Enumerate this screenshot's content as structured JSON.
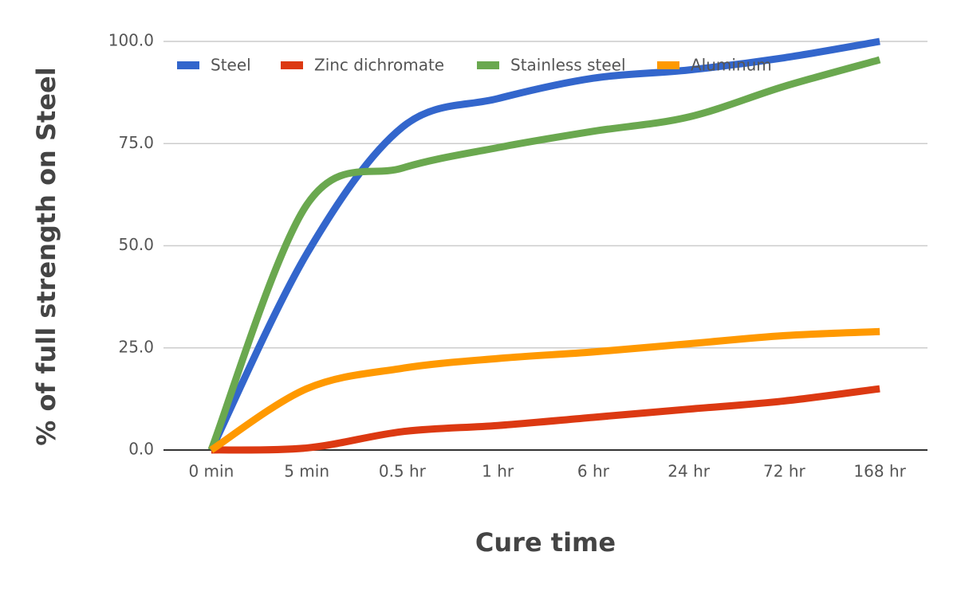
{
  "chart_data": {
    "type": "line",
    "x_label": "Cure time",
    "y_label": "% of full strength on Steel",
    "categories": [
      "0 min",
      "5 min",
      "0.5 hr",
      "1 hr",
      "6 hr",
      "24 hr",
      "72 hr",
      "168 hr"
    ],
    "series": [
      {
        "name": "Steel",
        "color": "#3366cc",
        "values": [
          0,
          48,
          79,
          86,
          91,
          93,
          96,
          100
        ]
      },
      {
        "name": "Zinc dichromate",
        "color": "#dc3912",
        "values": [
          0,
          0.5,
          4.5,
          6,
          8,
          10,
          12,
          15
        ]
      },
      {
        "name": "Stainless steel",
        "color": "#6aa84f",
        "values": [
          0,
          60,
          69,
          74,
          78,
          81.5,
          89,
          95.5
        ]
      },
      {
        "name": "Aluminum",
        "color": "#ff9900",
        "values": [
          0,
          15,
          20,
          22.4,
          24,
          26,
          28,
          29
        ]
      }
    ],
    "ylim": [
      0,
      100
    ],
    "yticks": [
      {
        "value": 0,
        "label": "0.0"
      },
      {
        "value": 25,
        "label": "25.0"
      },
      {
        "value": 50,
        "label": "50.0"
      },
      {
        "value": 75,
        "label": "75.0"
      },
      {
        "value": 100,
        "label": "100.0"
      }
    ],
    "grid": true,
    "legend": "top"
  }
}
